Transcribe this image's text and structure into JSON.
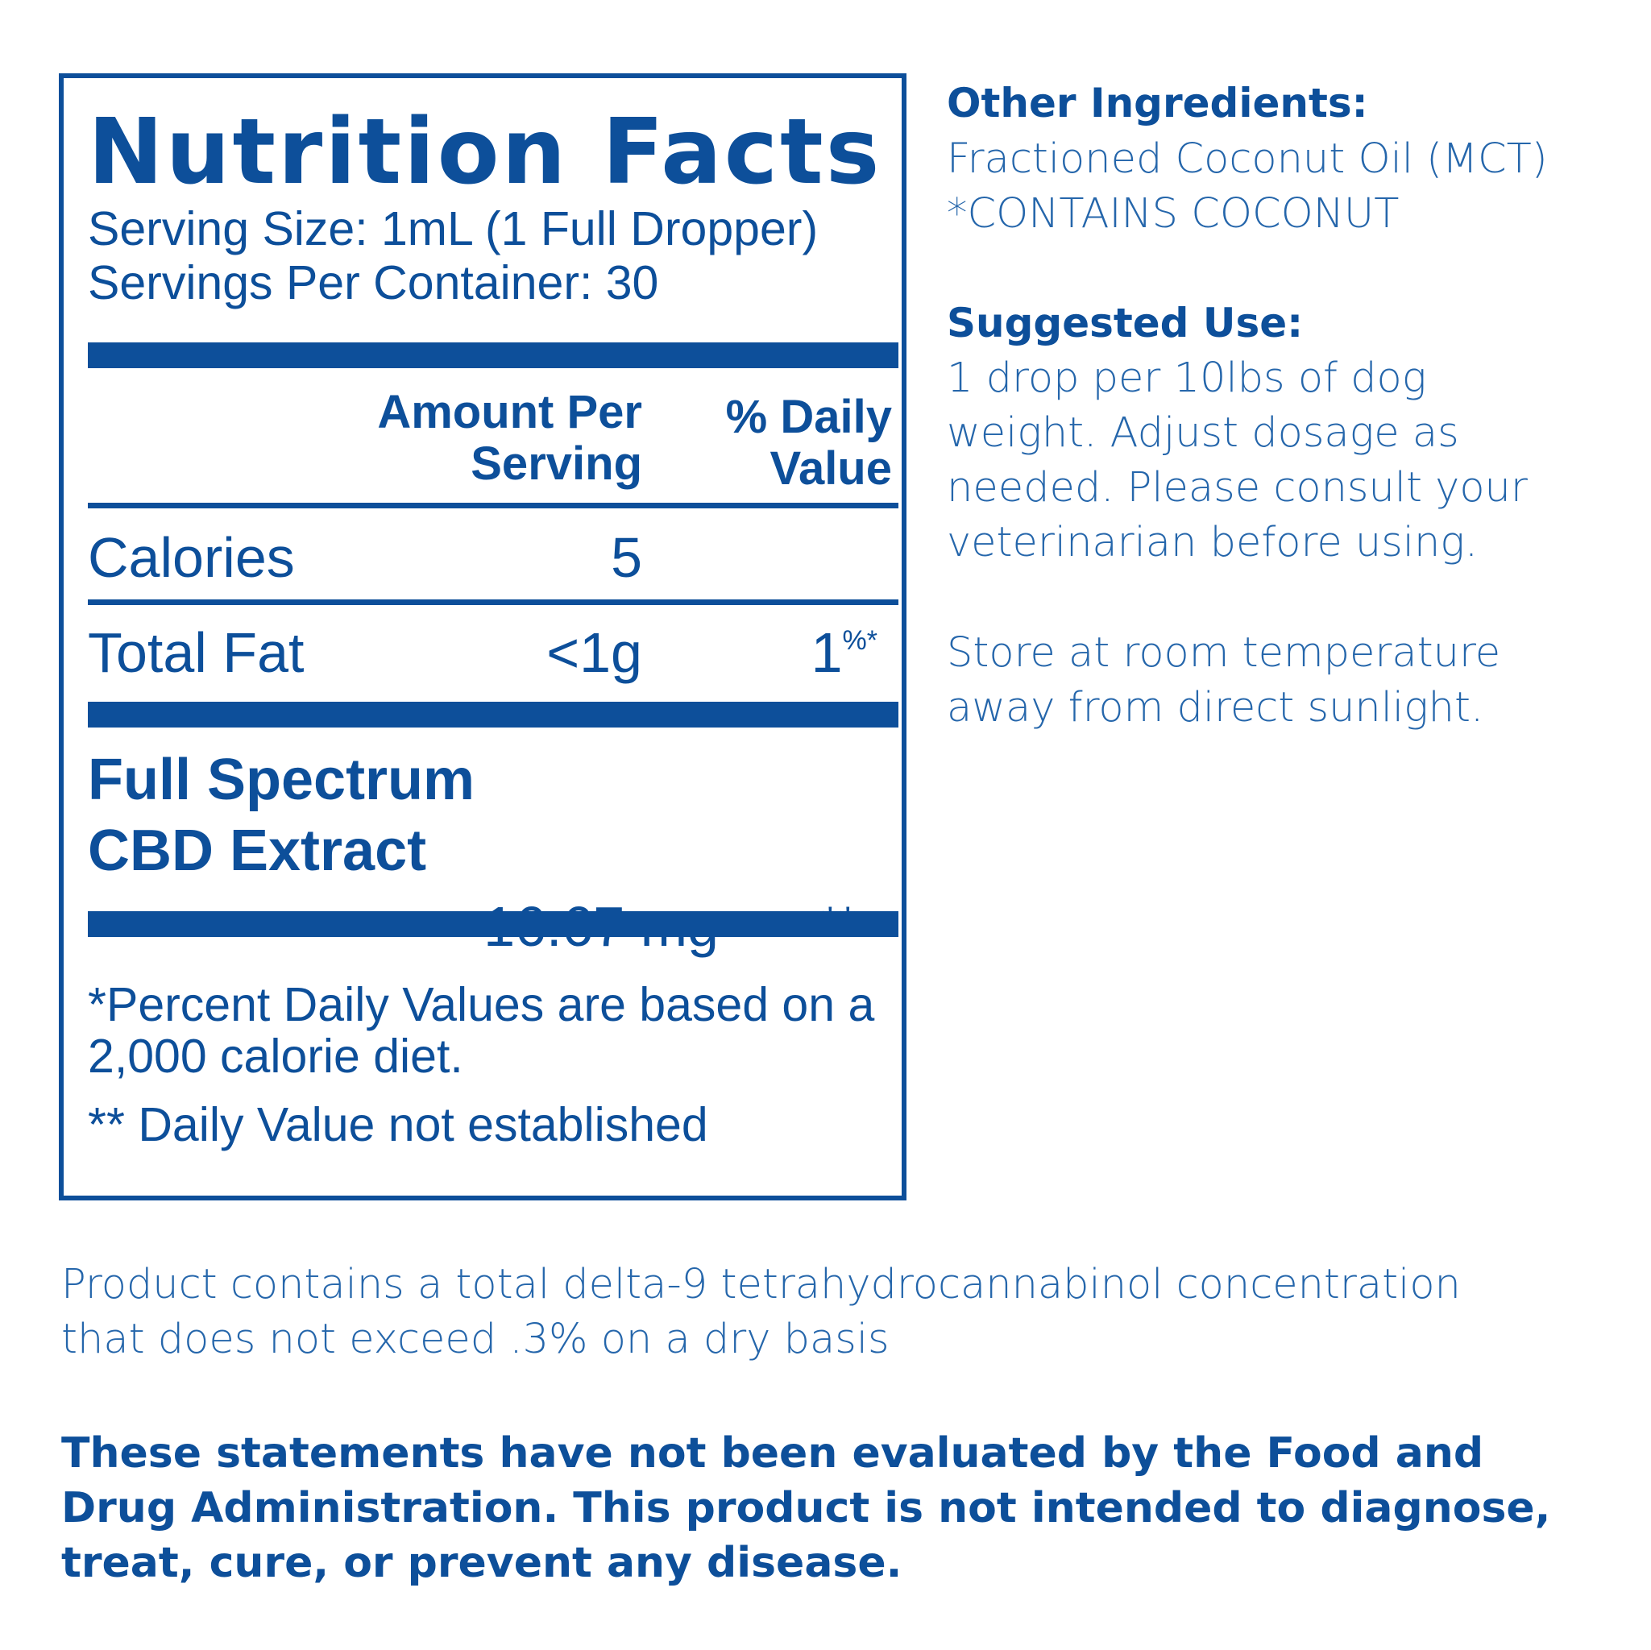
{
  "nutrition_facts": {
    "title": "Nutrition Facts",
    "serving_size": "Serving Size: 1mL (1 Full Dropper)",
    "servings_per_container": "Servings Per Container: 30",
    "column_headers": {
      "amount_line1": "Amount Per",
      "amount_line2": "Serving",
      "daily_line1": "% Daily",
      "daily_line2": "Value"
    },
    "rows": [
      {
        "label": "Calories",
        "amount": "5",
        "daily_value": ""
      },
      {
        "label": "Total Fat",
        "amount": "<1g",
        "daily_value": "1",
        "daily_suffix": "%*"
      }
    ],
    "extract": {
      "label_line1": "Full Spectrum",
      "label_line2": "CBD Extract",
      "amount": "16.67 mg",
      "daily_value": "**"
    },
    "footnote1_line1": "*Percent Daily Values are based on a",
    "footnote1_line2": "2,000 calorie diet.",
    "footnote2": "** Daily Value not established"
  },
  "other_ingredients": {
    "heading": "Other Ingredients:",
    "line1": "Fractioned Coconut Oil (MCT)",
    "line2": "*CONTAINS COCONUT"
  },
  "suggested_use": {
    "heading": "Suggested Use:",
    "lines": [
      "1 drop per 10lbs of dog",
      "weight. Adjust dosage as",
      "needed. Please consult your",
      "veterinarian before using."
    ]
  },
  "storage": {
    "lines": [
      "Store at room temperature",
      "away from direct sunlight."
    ]
  },
  "thc_statement": {
    "lines": [
      "Product contains a total delta-9 tetrahydrocannabinol concentration",
      "that does not exceed .3% on a dry basis"
    ]
  },
  "fda_disclaimer": {
    "lines": [
      "These statements have not been evaluated by the Food and",
      "Drug Administration. This product is not intended to diagnose,",
      "treat, cure, or prevent any disease."
    ]
  },
  "colors": {
    "brand_blue": "#0d4f9a",
    "light_blue": "#2566ab"
  }
}
